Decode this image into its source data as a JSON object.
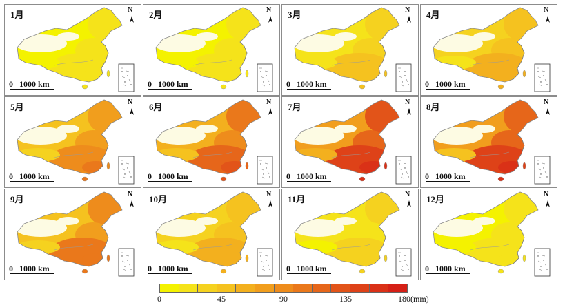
{
  "map": {
    "north_label": "N",
    "scale_label": "0   1000 km",
    "months": [
      {
        "label": "1月",
        "level": 0.1
      },
      {
        "label": "2月",
        "level": 0.13
      },
      {
        "label": "3月",
        "level": 0.22
      },
      {
        "label": "4月",
        "level": 0.32
      },
      {
        "label": "5月",
        "level": 0.48
      },
      {
        "label": "6月",
        "level": 0.62
      },
      {
        "label": "7月",
        "level": 0.78
      },
      {
        "label": "8月",
        "level": 0.75
      },
      {
        "label": "9月",
        "level": 0.52
      },
      {
        "label": "10月",
        "level": 0.3
      },
      {
        "label": "11月",
        "level": 0.18
      },
      {
        "label": "12月",
        "level": 0.1
      }
    ]
  },
  "legend": {
    "ticks": [
      "0",
      "45",
      "90",
      "135",
      "180(mm)"
    ],
    "tick_values": [
      0,
      45,
      90,
      135,
      180
    ],
    "min": 0,
    "max": 180,
    "colors": [
      "#f4f200",
      "#f5e31a",
      "#f5d21f",
      "#f5c21f",
      "#f3b01e",
      "#f19e1d",
      "#ee8c1c",
      "#ea781b",
      "#e6661a",
      "#e25419",
      "#de4218",
      "#da3117",
      "#d52016"
    ]
  }
}
